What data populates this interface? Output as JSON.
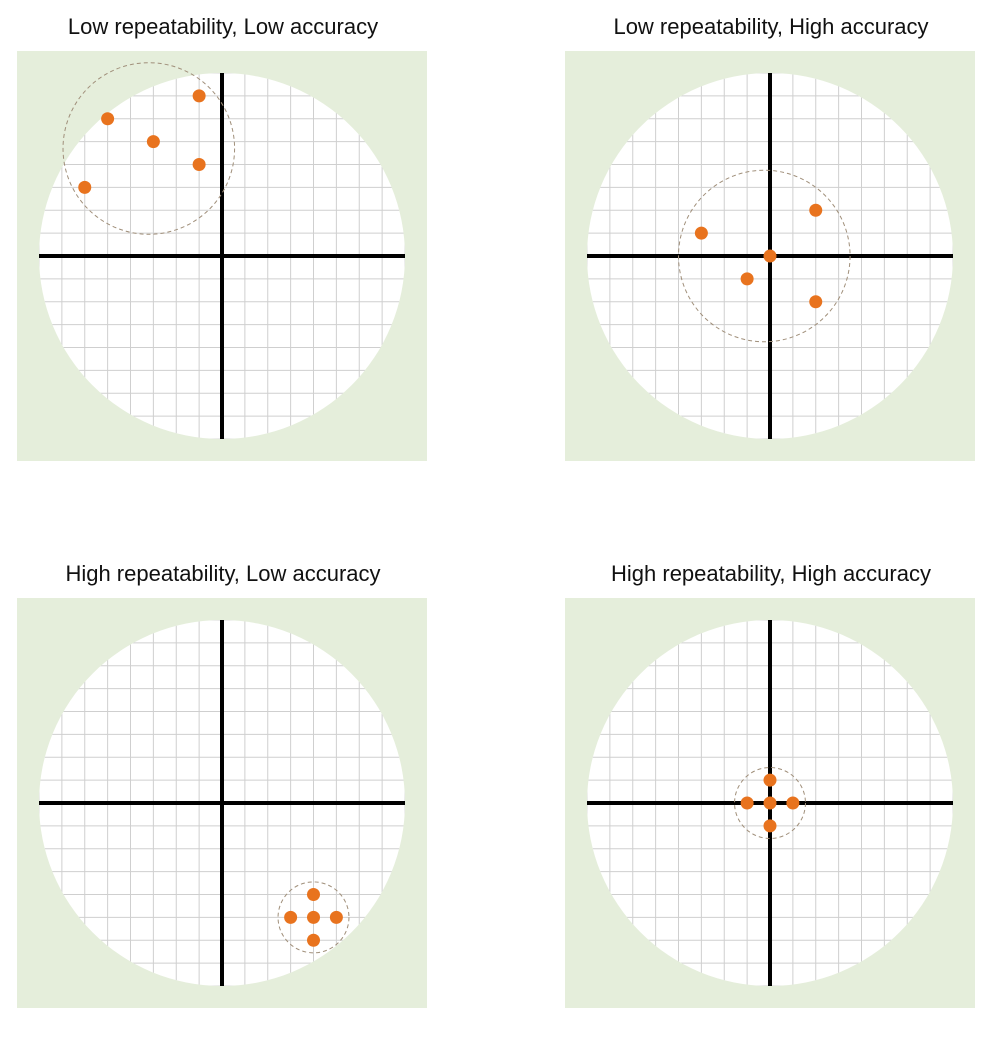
{
  "colors": {
    "background": "#e5eedb",
    "target": "#ffffff",
    "grid": "#cfcfcf",
    "axis": "#000000",
    "point": "#e8731e",
    "spread_circle": "#a08f7a"
  },
  "grid": {
    "cells_per_half_axis": 8
  },
  "panels": [
    {
      "title": "Low repeatability, Low accuracy",
      "points": [
        [
          -1,
          7
        ],
        [
          -5,
          6
        ],
        [
          -3,
          5
        ],
        [
          -1,
          4
        ],
        [
          -6,
          3
        ]
      ],
      "spread_circle": {
        "center": [
          -3.2,
          4.7
        ],
        "radius": 3.75
      }
    },
    {
      "title": "Low repeatability, High accuracy",
      "points": [
        [
          2,
          2
        ],
        [
          -3,
          1
        ],
        [
          0,
          0
        ],
        [
          -1,
          -1
        ],
        [
          2,
          -2
        ]
      ],
      "spread_circle": {
        "center": [
          -0.25,
          0
        ],
        "radius": 3.75
      }
    },
    {
      "title": "High repeatability, Low accuracy",
      "points": [
        [
          4,
          -4
        ],
        [
          3,
          -5
        ],
        [
          4,
          -5
        ],
        [
          5,
          -5
        ],
        [
          4,
          -6
        ]
      ],
      "spread_circle": {
        "center": [
          4,
          -5
        ],
        "radius": 1.55
      }
    },
    {
      "title": "High repeatability, High accuracy",
      "points": [
        [
          0,
          1
        ],
        [
          -1,
          0
        ],
        [
          0,
          0
        ],
        [
          1,
          0
        ],
        [
          0,
          -1
        ]
      ],
      "spread_circle": {
        "center": [
          0,
          0
        ],
        "radius": 1.55
      }
    }
  ]
}
